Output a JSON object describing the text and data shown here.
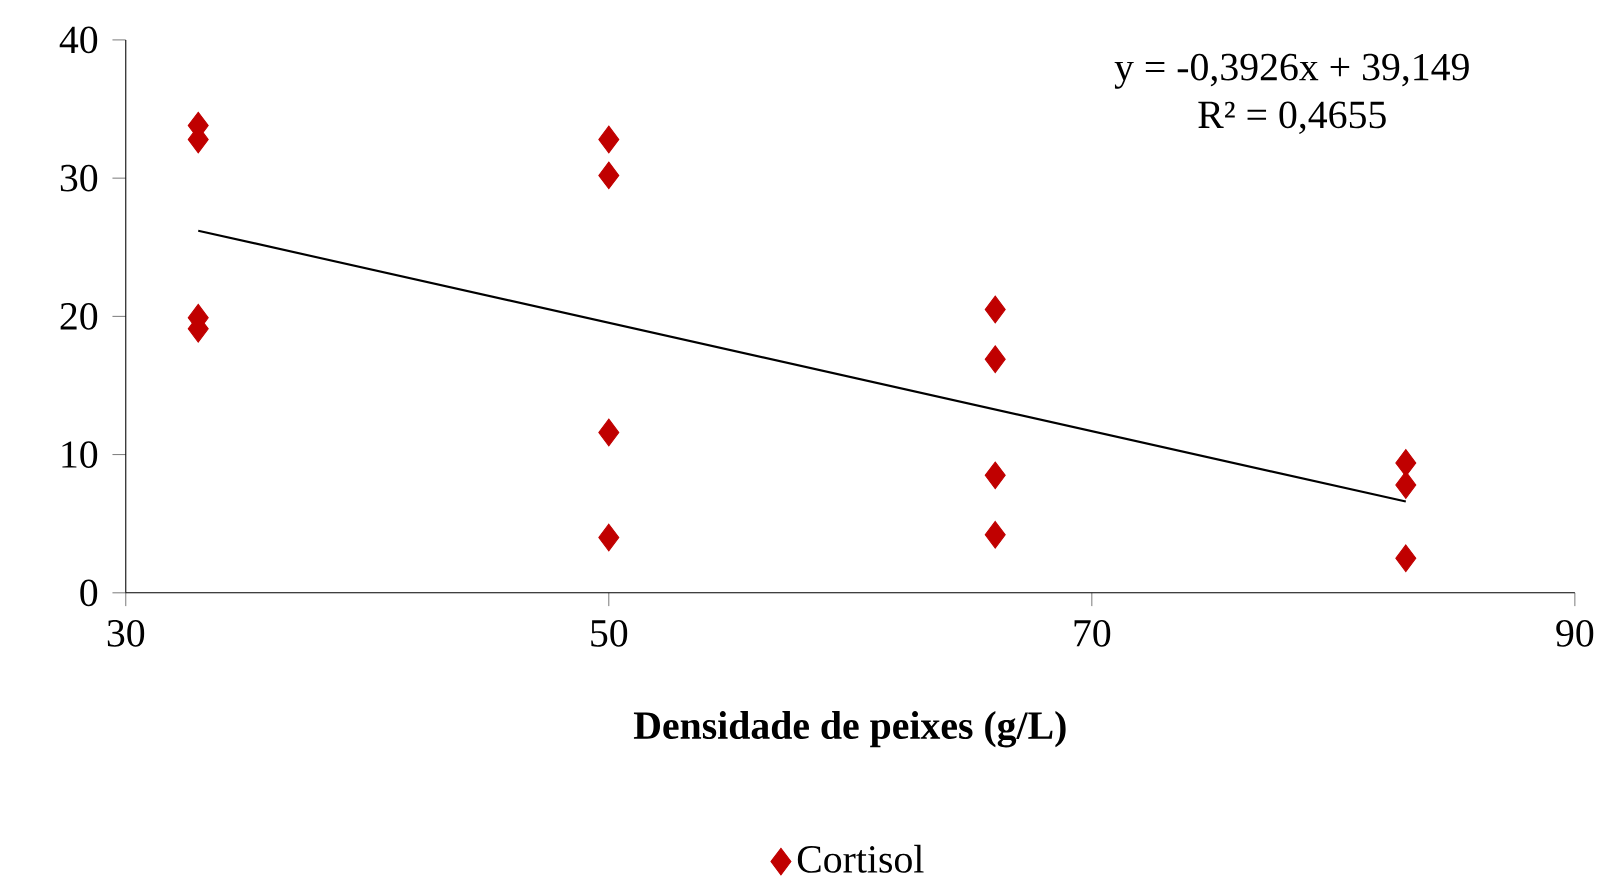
{
  "chart_data": {
    "type": "scatter",
    "xlabel": "Densidade de peixes (g/L)",
    "xlim": [
      30,
      90
    ],
    "ylim": [
      0,
      40
    ],
    "xticks": [
      30,
      50,
      70,
      90
    ],
    "yticks": [
      0,
      10,
      20,
      30,
      40
    ],
    "grid": false,
    "legend": "bottom",
    "marker": "diamond",
    "annotations": [
      "y = -0,3926x + 39,149",
      "R² = 0,4655"
    ],
    "series": [
      {
        "name": "Cortisol",
        "color": "#c00000",
        "x": [
          33,
          33,
          33,
          33,
          50,
          50,
          50,
          50,
          66,
          66,
          66,
          66,
          83,
          83,
          83
        ],
        "values": [
          33.8,
          32.8,
          19.9,
          19.1,
          32.8,
          30.2,
          11.6,
          4.0,
          20.5,
          16.9,
          8.5,
          4.2,
          9.4,
          7.8,
          2.5
        ]
      },
      {
        "type": "line",
        "marker": "none",
        "color": "#000000",
        "x": [
          33,
          83
        ],
        "values": [
          26.2,
          6.6
        ]
      }
    ]
  }
}
